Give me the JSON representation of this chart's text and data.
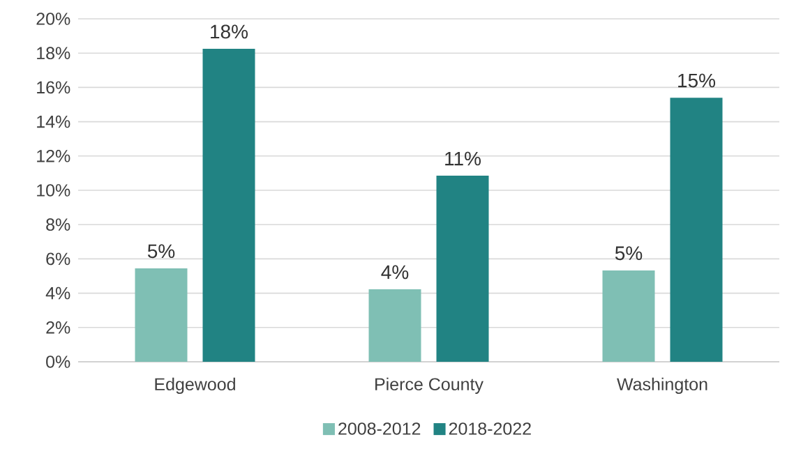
{
  "chart_data": {
    "type": "bar",
    "categories": [
      "Edgewood",
      "Pierce County",
      "Washington"
    ],
    "series": [
      {
        "name": "2008-2012",
        "color": "#7fbfb4",
        "values": [
          5.45,
          4.23,
          5.33
        ],
        "value_labels": [
          "5%",
          "4%",
          "5%"
        ]
      },
      {
        "name": "2018-2022",
        "color": "#218383",
        "values": [
          18.25,
          10.85,
          15.4
        ],
        "value_labels": [
          "18%",
          "11%",
          "15%"
        ]
      }
    ],
    "ylim": [
      0,
      20
    ],
    "yticks": [
      {
        "value": 0,
        "label": "0%"
      },
      {
        "value": 2,
        "label": "2%"
      },
      {
        "value": 4,
        "label": "4%"
      },
      {
        "value": 6,
        "label": "6%"
      },
      {
        "value": 8,
        "label": "8%"
      },
      {
        "value": 10,
        "label": "10%"
      },
      {
        "value": 12,
        "label": "12%"
      },
      {
        "value": 14,
        "label": "14%"
      },
      {
        "value": 16,
        "label": "16%"
      },
      {
        "value": 18,
        "label": "18%"
      },
      {
        "value": 20,
        "label": "20%"
      }
    ],
    "grid": "y",
    "legend": "bottom"
  }
}
